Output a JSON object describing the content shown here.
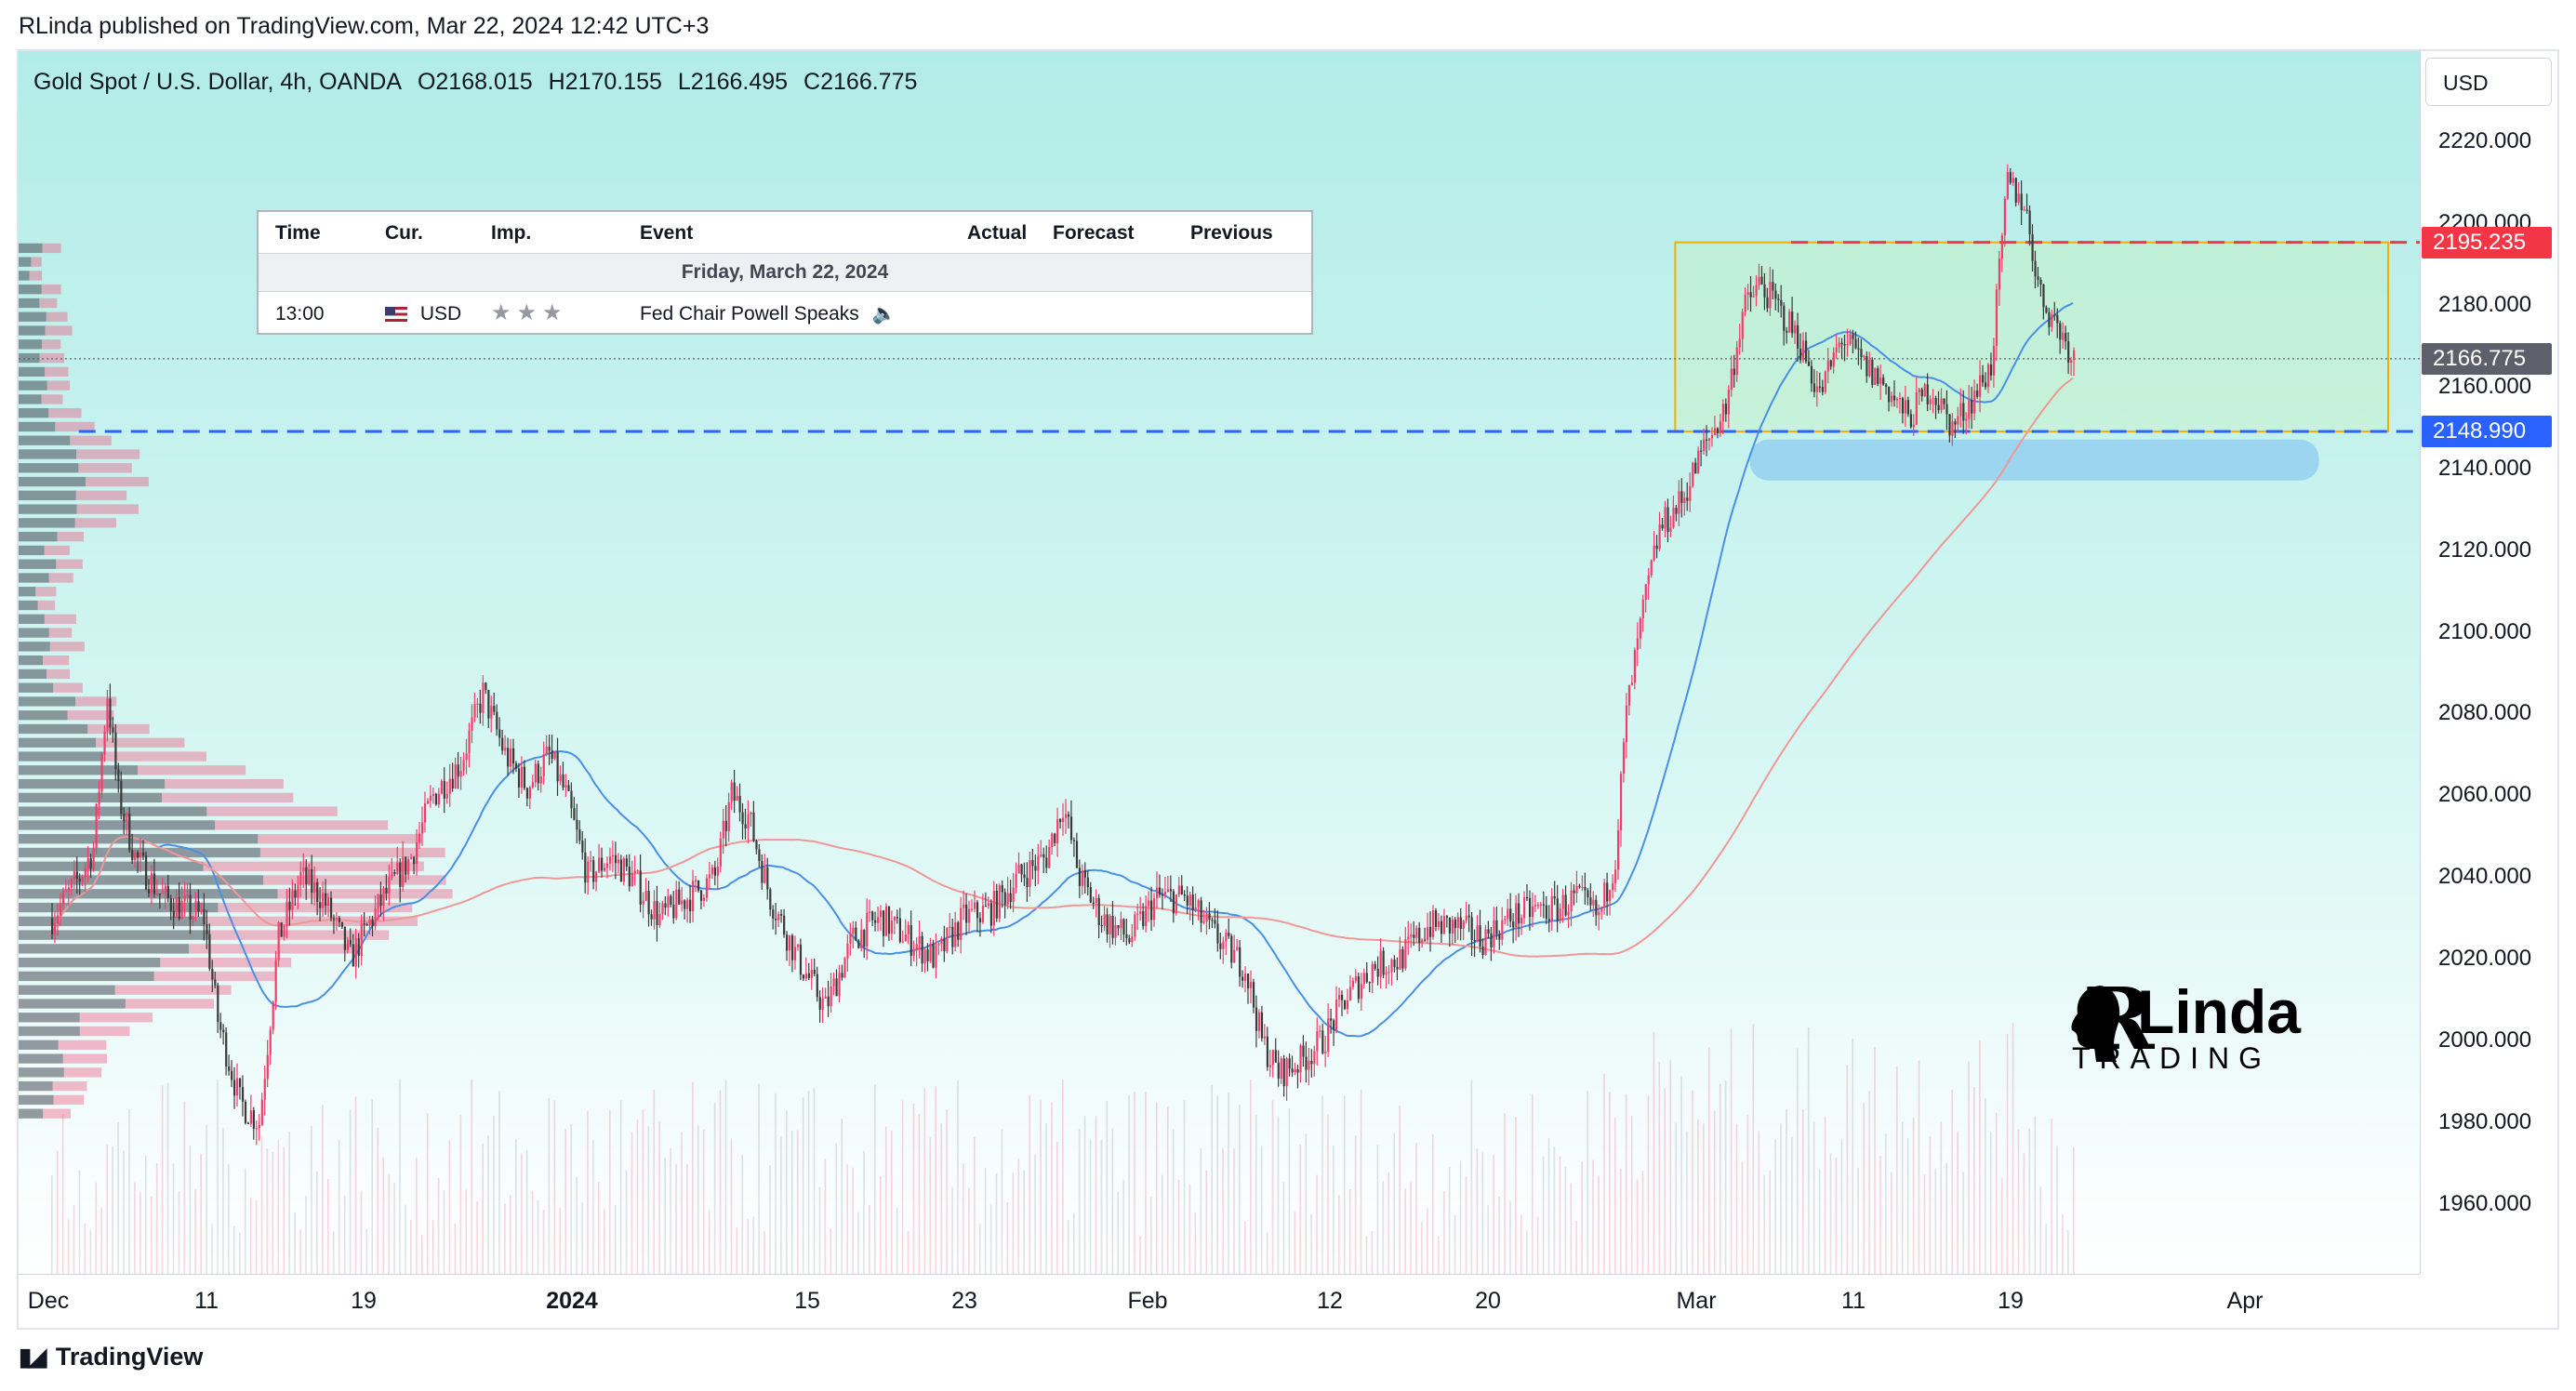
{
  "publisher_line": "RLinda published on TradingView.com, Mar 22, 2024 12:42 UTC+3",
  "legend": {
    "symbol": "Gold Spot / U.S. Dollar, 4h, OANDA",
    "open": "O2168.015",
    "high": "H2170.155",
    "low": "L2166.495",
    "close": "C2166.775"
  },
  "currency_button": "USD",
  "calendar": {
    "headers": [
      "Time",
      "Cur.",
      "Imp.",
      "Event",
      "Actual",
      "Forecast",
      "Previous"
    ],
    "day": "Friday, March 22, 2024",
    "row": {
      "time": "13:00",
      "currency": "USD",
      "event": "Fed Chair Powell Speaks"
    }
  },
  "price_tags": {
    "resistance": "2195.235",
    "last": "2166.775",
    "support": "2148.990"
  },
  "colors": {
    "up": "#f23d6b",
    "down": "#3a3a3a",
    "resistance": "#f23645",
    "support": "#2962ff",
    "last": "#5d606b",
    "box": "#f0b000",
    "ma_fast": "#4a8fe7",
    "ma_slow": "#f09797",
    "background_top": "#b2ece8",
    "background_bottom": "#ffffff"
  },
  "footer": "TradingView",
  "logo": {
    "initial": "R",
    "name": "Linda",
    "sub": "TRADING"
  },
  "chart_data": {
    "type": "candlestick",
    "title": "Gold Spot / U.S. Dollar, 4h, OANDA",
    "ylabel": "USD",
    "ylim": [
      1943,
      2242
    ],
    "y_ticks": [
      "2220.000",
      "2200.000",
      "2180.000",
      "2160.000",
      "2140.000",
      "2120.000",
      "2100.000",
      "2080.000",
      "2060.000",
      "2040.000",
      "2020.000",
      "2000.000",
      "1980.000",
      "1960.000"
    ],
    "x_ticks": [
      {
        "label": "Dec",
        "bold": false
      },
      {
        "label": "11",
        "bold": false
      },
      {
        "label": "19",
        "bold": false
      },
      {
        "label": "2024",
        "bold": true
      },
      {
        "label": "15",
        "bold": false
      },
      {
        "label": "23",
        "bold": false
      },
      {
        "label": "Feb",
        "bold": false
      },
      {
        "label": "12",
        "bold": false
      },
      {
        "label": "20",
        "bold": false
      },
      {
        "label": "Mar",
        "bold": false
      },
      {
        "label": "11",
        "bold": false
      },
      {
        "label": "19",
        "bold": false
      },
      {
        "label": "Apr",
        "bold": false
      }
    ],
    "price_path": [
      [
        0,
        2030
      ],
      [
        10,
        2040
      ],
      [
        15,
        2047
      ],
      [
        20,
        2085
      ],
      [
        24,
        2060
      ],
      [
        30,
        2045
      ],
      [
        40,
        2035
      ],
      [
        55,
        2030
      ],
      [
        60,
        2005
      ],
      [
        68,
        1985
      ],
      [
        75,
        1980
      ],
      [
        82,
        2025
      ],
      [
        90,
        2040
      ],
      [
        98,
        2035
      ],
      [
        108,
        2020
      ],
      [
        120,
        2035
      ],
      [
        130,
        2045
      ],
      [
        138,
        2060
      ],
      [
        148,
        2068
      ],
      [
        156,
        2085
      ],
      [
        164,
        2070
      ],
      [
        172,
        2062
      ],
      [
        180,
        2070
      ],
      [
        186,
        2060
      ],
      [
        194,
        2040
      ],
      [
        202,
        2045
      ],
      [
        210,
        2040
      ],
      [
        220,
        2030
      ],
      [
        230,
        2035
      ],
      [
        240,
        2040
      ],
      [
        246,
        2060
      ],
      [
        252,
        2055
      ],
      [
        260,
        2035
      ],
      [
        270,
        2020
      ],
      [
        280,
        2008
      ],
      [
        290,
        2025
      ],
      [
        300,
        2030
      ],
      [
        310,
        2025
      ],
      [
        320,
        2020
      ],
      [
        330,
        2030
      ],
      [
        340,
        2032
      ],
      [
        350,
        2040
      ],
      [
        360,
        2045
      ],
      [
        366,
        2058
      ],
      [
        372,
        2040
      ],
      [
        380,
        2030
      ],
      [
        390,
        2025
      ],
      [
        400,
        2035
      ],
      [
        410,
        2035
      ],
      [
        418,
        2028
      ],
      [
        426,
        2022
      ],
      [
        432,
        2018
      ],
      [
        438,
        2000
      ],
      [
        444,
        1992
      ],
      [
        452,
        1995
      ],
      [
        460,
        2000
      ],
      [
        468,
        2010
      ],
      [
        478,
        2018
      ],
      [
        488,
        2020
      ],
      [
        498,
        2028
      ],
      [
        508,
        2028
      ],
      [
        518,
        2025
      ],
      [
        528,
        2030
      ],
      [
        536,
        2032
      ],
      [
        544,
        2032
      ],
      [
        552,
        2035
      ],
      [
        560,
        2030
      ],
      [
        566,
        2045
      ],
      [
        570,
        2080
      ],
      [
        576,
        2105
      ],
      [
        582,
        2125
      ],
      [
        590,
        2132
      ],
      [
        598,
        2145
      ],
      [
        606,
        2155
      ],
      [
        612,
        2178
      ],
      [
        618,
        2185
      ],
      [
        624,
        2180
      ],
      [
        632,
        2172
      ],
      [
        640,
        2158
      ],
      [
        648,
        2172
      ],
      [
        656,
        2165
      ],
      [
        664,
        2160
      ],
      [
        672,
        2152
      ],
      [
        680,
        2160
      ],
      [
        688,
        2150
      ],
      [
        696,
        2158
      ],
      [
        702,
        2165
      ],
      [
        708,
        2210
      ],
      [
        714,
        2205
      ],
      [
        720,
        2182
      ],
      [
        726,
        2175
      ],
      [
        732,
        2167
      ]
    ],
    "volume_profile_rows": 64,
    "annotations": [
      "2195.235",
      "2148.990"
    ]
  }
}
